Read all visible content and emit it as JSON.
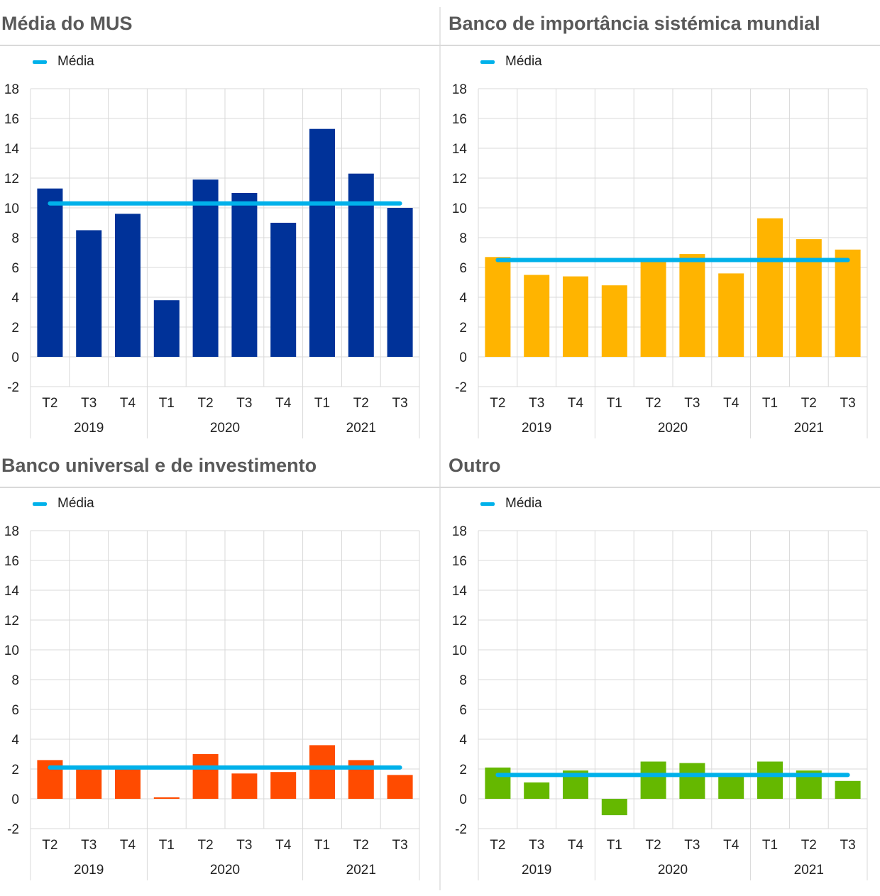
{
  "legend_label": "Média",
  "colors": {
    "mean_line": "#00b1ea",
    "grid": "#d9d9d9",
    "text": "#222222"
  },
  "chart_data": [
    {
      "type": "bar",
      "title": "Média do MUS",
      "color": "#003299",
      "quarters": [
        "T2",
        "T3",
        "T4",
        "T1",
        "T2",
        "T3",
        "T4",
        "T1",
        "T2",
        "T3"
      ],
      "years": [
        "2019",
        "2020",
        "2021"
      ],
      "values": [
        11.3,
        8.5,
        9.6,
        3.8,
        11.9,
        11.0,
        9.0,
        15.3,
        12.3,
        10.0
      ],
      "mean": 10.3,
      "ylim": [
        -2,
        18
      ],
      "yticks": [
        "18",
        "16",
        "14",
        "12",
        "10",
        "8",
        "6",
        "4",
        "2",
        "0",
        "-2"
      ]
    },
    {
      "type": "bar",
      "title": "Banco de importância sistémica mundial",
      "color": "#ffb400",
      "quarters": [
        "T2",
        "T3",
        "T4",
        "T1",
        "T2",
        "T3",
        "T4",
        "T1",
        "T2",
        "T3"
      ],
      "years": [
        "2019",
        "2020",
        "2021"
      ],
      "values": [
        6.7,
        5.5,
        5.4,
        4.8,
        6.5,
        6.9,
        5.6,
        9.3,
        7.9,
        7.2
      ],
      "mean": 6.5,
      "ylim": [
        -2,
        18
      ],
      "yticks": [
        "18",
        "16",
        "14",
        "12",
        "10",
        "8",
        "6",
        "4",
        "2",
        "0",
        "-2"
      ]
    },
    {
      "type": "bar",
      "title": "Banco universal e de investimento",
      "color": "#ff4b00",
      "quarters": [
        "T2",
        "T3",
        "T4",
        "T1",
        "T2",
        "T3",
        "T4",
        "T1",
        "T2",
        "T3"
      ],
      "years": [
        "2019",
        "2020",
        "2021"
      ],
      "values": [
        2.6,
        2.1,
        2.2,
        0.1,
        3.0,
        1.7,
        1.8,
        3.6,
        2.6,
        1.6
      ],
      "mean": 2.1,
      "ylim": [
        -2,
        18
      ],
      "yticks": [
        "18",
        "16",
        "14",
        "12",
        "10",
        "8",
        "6",
        "4",
        "2",
        "0",
        "-2"
      ]
    },
    {
      "type": "bar",
      "title": "Outro",
      "color": "#65b800",
      "quarters": [
        "T2",
        "T3",
        "T4",
        "T1",
        "T2",
        "T3",
        "T4",
        "T1",
        "T2",
        "T3"
      ],
      "years": [
        "2019",
        "2020",
        "2021"
      ],
      "values": [
        2.1,
        1.1,
        1.9,
        -1.1,
        2.5,
        2.4,
        1.6,
        2.5,
        1.9,
        1.2
      ],
      "mean": 1.6,
      "ylim": [
        -2,
        18
      ],
      "yticks": [
        "18",
        "16",
        "14",
        "12",
        "10",
        "8",
        "6",
        "4",
        "2",
        "0",
        "-2"
      ]
    }
  ]
}
